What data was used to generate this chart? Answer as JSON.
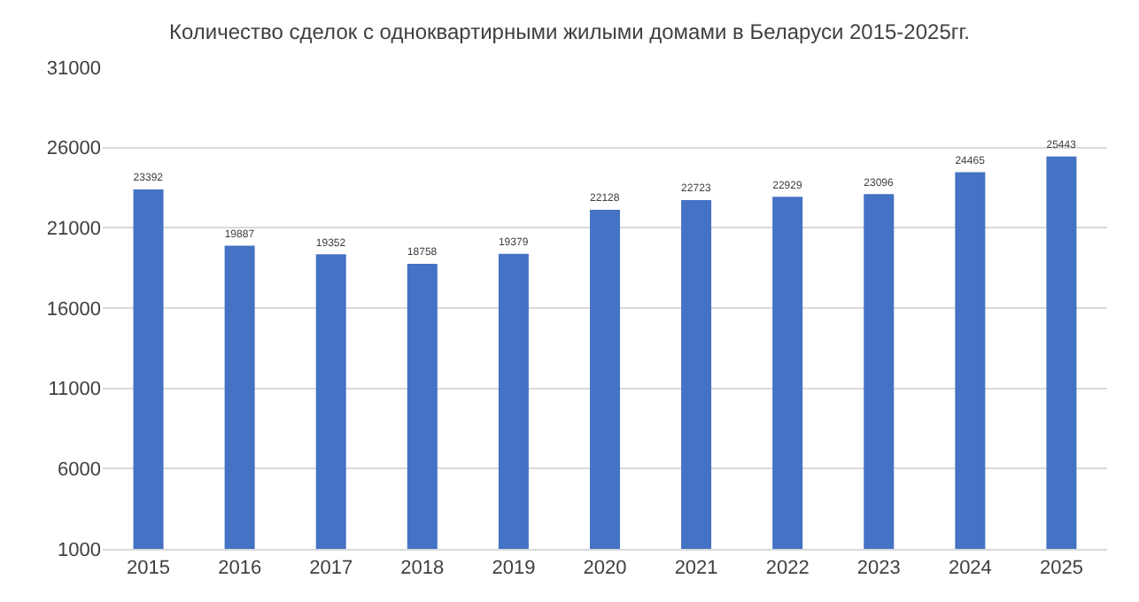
{
  "chart_data": {
    "type": "bar",
    "title": "Количество сделок с одноквартирными жилыми домами в Беларуси 2015-2025гг.",
    "categories": [
      "2015",
      "2016",
      "2017",
      "2018",
      "2019",
      "2020",
      "2021",
      "2022",
      "2023",
      "2024",
      "2025"
    ],
    "values": [
      23392,
      19887,
      19352,
      18758,
      19379,
      22128,
      22723,
      22929,
      23096,
      24465,
      25443
    ],
    "color": "#4472c4",
    "ylim": [
      1000,
      31000
    ],
    "yticks": [
      1000,
      6000,
      11000,
      16000,
      21000,
      26000,
      31000
    ],
    "grid": "y",
    "data_labels": true
  }
}
